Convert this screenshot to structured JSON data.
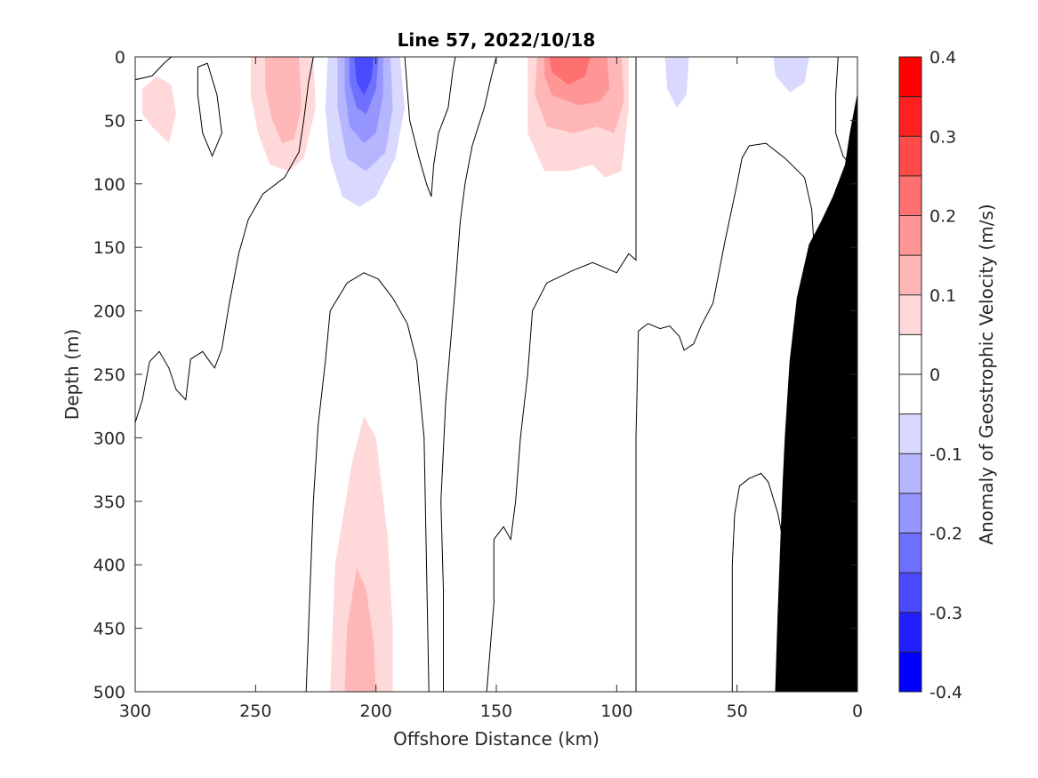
{
  "chart_data": {
    "type": "contour",
    "title": "Line 57, 2022/10/18",
    "xlabel": "Offshore Distance (km)",
    "ylabel": "Depth (m)",
    "xlim": [
      300,
      0
    ],
    "ylim": [
      0,
      500
    ],
    "x_reversed": true,
    "y_reversed": true,
    "xticks": [
      300,
      250,
      200,
      150,
      100,
      50,
      0
    ],
    "yticks": [
      0,
      50,
      100,
      150,
      200,
      250,
      300,
      350,
      400,
      450,
      500
    ],
    "colorbar": {
      "label": "Anomaly of Geostrophic Velocity (m/s)",
      "range": [
        -0.4,
        0.4
      ],
      "ticks": [
        0.4,
        0.3,
        0.2,
        0.1,
        0,
        -0.1,
        -0.2,
        -0.3,
        -0.4
      ],
      "tick_labels": [
        "0.4",
        "0.3",
        "0.2",
        "0.1",
        "0",
        "-0.1",
        "-0.2",
        "-0.3",
        "-0.4"
      ],
      "levels": 16,
      "colors_top_to_bottom": [
        "#ff0000",
        "#ff2020",
        "#ff4a4a",
        "#ff7070",
        "#ff9696",
        "#ffb6b6",
        "#ffd9d9",
        "#ffffff",
        "#ffffff",
        "#d9d9ff",
        "#b6b6ff",
        "#9696ff",
        "#7070ff",
        "#4a4aff",
        "#2020ff",
        "#0000ff"
      ]
    },
    "features": [
      {
        "kind": "positive",
        "level": 0.1,
        "points": [
          [
            297,
            25
          ],
          [
            291,
            15
          ],
          [
            285,
            22
          ],
          [
            283,
            45
          ],
          [
            286,
            68
          ],
          [
            293,
            55
          ],
          [
            297,
            45
          ]
        ]
      },
      {
        "kind": "positive",
        "level": 0.05,
        "points": [
          [
            265,
            2
          ],
          [
            258,
            2
          ],
          [
            257,
            12
          ],
          [
            262,
            18
          ],
          [
            267,
            10
          ]
        ]
      },
      {
        "kind": "positive",
        "level": 0.1,
        "points": [
          [
            252,
            0
          ],
          [
            226,
            0
          ],
          [
            225,
            40
          ],
          [
            230,
            80
          ],
          [
            236,
            90
          ],
          [
            244,
            85
          ],
          [
            249,
            60
          ],
          [
            252,
            30
          ]
        ]
      },
      {
        "kind": "positive",
        "level": 0.15,
        "points": [
          [
            246,
            0
          ],
          [
            232,
            0
          ],
          [
            231,
            40
          ],
          [
            234,
            65
          ],
          [
            239,
            68
          ],
          [
            243,
            50
          ],
          [
            246,
            25
          ]
        ]
      },
      {
        "kind": "negative",
        "level": -0.1,
        "points": [
          [
            220,
            0
          ],
          [
            190,
            0
          ],
          [
            188,
            40
          ],
          [
            192,
            80
          ],
          [
            200,
            110
          ],
          [
            207,
            118
          ],
          [
            214,
            110
          ],
          [
            219,
            80
          ],
          [
            221,
            40
          ]
        ]
      },
      {
        "kind": "negative",
        "level": -0.15,
        "points": [
          [
            216,
            0
          ],
          [
            194,
            0
          ],
          [
            193,
            40
          ],
          [
            196,
            75
          ],
          [
            204,
            90
          ],
          [
            212,
            80
          ],
          [
            216,
            40
          ]
        ]
      },
      {
        "kind": "negative",
        "level": -0.2,
        "points": [
          [
            213,
            0
          ],
          [
            197,
            0
          ],
          [
            197,
            30
          ],
          [
            200,
            60
          ],
          [
            205,
            68
          ],
          [
            211,
            55
          ],
          [
            213,
            25
          ]
        ]
      },
      {
        "kind": "negative",
        "level": -0.25,
        "points": [
          [
            211,
            0
          ],
          [
            199,
            0
          ],
          [
            200,
            25
          ],
          [
            204,
            45
          ],
          [
            208,
            40
          ],
          [
            211,
            20
          ]
        ]
      },
      {
        "kind": "negative",
        "level": -0.3,
        "points": [
          [
            209,
            0
          ],
          [
            201,
            0
          ],
          [
            202,
            18
          ],
          [
            205,
            30
          ],
          [
            208,
            20
          ]
        ]
      },
      {
        "kind": "positive",
        "level": 0.05,
        "points": [
          [
            182,
            0
          ],
          [
            174,
            0
          ],
          [
            175,
            15
          ],
          [
            177,
            25
          ],
          [
            181,
            18
          ]
        ]
      },
      {
        "kind": "negative",
        "level": -0.05,
        "points": [
          [
            162,
            0
          ],
          [
            148,
            0
          ],
          [
            150,
            25
          ],
          [
            156,
            35
          ],
          [
            161,
            20
          ]
        ]
      },
      {
        "kind": "positive",
        "level": 0.1,
        "points": [
          [
            137,
            0
          ],
          [
            95,
            0
          ],
          [
            95,
            40
          ],
          [
            98,
            90
          ],
          [
            105,
            95
          ],
          [
            110,
            85
          ],
          [
            120,
            90
          ],
          [
            130,
            90
          ],
          [
            137,
            60
          ]
        ]
      },
      {
        "kind": "positive",
        "level": 0.15,
        "points": [
          [
            133,
            0
          ],
          [
            98,
            0
          ],
          [
            97,
            35
          ],
          [
            101,
            60
          ],
          [
            108,
            55
          ],
          [
            118,
            60
          ],
          [
            129,
            55
          ],
          [
            134,
            30
          ]
        ]
      },
      {
        "kind": "positive",
        "level": 0.2,
        "points": [
          [
            130,
            0
          ],
          [
            104,
            0
          ],
          [
            103,
            25
          ],
          [
            107,
            35
          ],
          [
            116,
            38
          ],
          [
            127,
            30
          ],
          [
            130,
            15
          ]
        ]
      },
      {
        "kind": "positive",
        "level": 0.25,
        "points": [
          [
            128,
            0
          ],
          [
            111,
            0
          ],
          [
            113,
            15
          ],
          [
            120,
            22
          ],
          [
            127,
            12
          ]
        ]
      },
      {
        "kind": "negative",
        "level": -0.05,
        "points": [
          [
            88,
            0
          ],
          [
            62,
            0
          ],
          [
            58,
            50
          ],
          [
            63,
            100
          ],
          [
            70,
            100
          ],
          [
            80,
            75
          ],
          [
            88,
            40
          ]
        ]
      },
      {
        "kind": "negative",
        "level": -0.1,
        "points": [
          [
            80,
            0
          ],
          [
            70,
            0
          ],
          [
            71,
            30
          ],
          [
            75,
            40
          ],
          [
            79,
            25
          ]
        ]
      },
      {
        "kind": "negative",
        "level": -0.05,
        "points": [
          [
            42,
            0
          ],
          [
            12,
            0
          ],
          [
            12,
            30
          ],
          [
            18,
            45
          ],
          [
            28,
            50
          ],
          [
            38,
            40
          ],
          [
            42,
            20
          ]
        ]
      },
      {
        "kind": "negative",
        "level": -0.1,
        "points": [
          [
            35,
            0
          ],
          [
            20,
            0
          ],
          [
            22,
            20
          ],
          [
            28,
            28
          ],
          [
            34,
            15
          ]
        ]
      },
      {
        "kind": "positive",
        "level": 0.1,
        "points": [
          [
            193,
            500
          ],
          [
            219,
            500
          ],
          [
            217,
            400
          ],
          [
            210,
            320
          ],
          [
            205,
            283
          ],
          [
            200,
            300
          ],
          [
            195,
            380
          ],
          [
            193,
            450
          ]
        ]
      },
      {
        "kind": "positive",
        "level": 0.15,
        "points": [
          [
            200,
            500
          ],
          [
            213,
            500
          ],
          [
            212,
            450
          ],
          [
            208,
            402
          ],
          [
            204,
            420
          ],
          [
            201,
            460
          ]
        ]
      },
      {
        "kind": "negative",
        "level": -0.05,
        "points": [
          [
            115,
            500
          ],
          [
            137,
            500
          ],
          [
            135,
            400
          ],
          [
            128,
            330
          ],
          [
            122,
            308
          ],
          [
            117,
            360
          ],
          [
            115,
            440
          ]
        ]
      },
      {
        "kind": "negative",
        "level": -0.05,
        "points": [
          [
            101,
            500
          ],
          [
            109,
            500
          ],
          [
            108,
            420
          ],
          [
            106,
            367
          ],
          [
            103,
            380
          ],
          [
            101,
            440
          ]
        ]
      },
      {
        "kind": "positive",
        "level": 0.05,
        "points": [
          [
            66,
            500
          ],
          [
            82,
            500
          ],
          [
            80,
            440
          ],
          [
            75,
            378
          ],
          [
            70,
            400
          ],
          [
            67,
            450
          ]
        ]
      },
      {
        "kind": "positive",
        "level": 0.05,
        "points": [
          [
            1,
            30
          ],
          [
            0,
            28
          ],
          [
            0,
            50
          ],
          [
            1,
            45
          ]
        ]
      }
    ],
    "zero_contours": [
      [
        [
          300,
          18
        ],
        [
          293,
          15
        ],
        [
          288,
          5
        ],
        [
          285,
          0
        ]
      ],
      [
        [
          300,
          288
        ],
        [
          297,
          270
        ],
        [
          294,
          240
        ],
        [
          290,
          232
        ],
        [
          286,
          245
        ],
        [
          283,
          262
        ],
        [
          279,
          270
        ],
        [
          277,
          238
        ],
        [
          272,
          232
        ],
        [
          269,
          240
        ],
        [
          267,
          245
        ],
        [
          264,
          230
        ],
        [
          261,
          195
        ],
        [
          257,
          155
        ],
        [
          253,
          128
        ],
        [
          247,
          108
        ],
        [
          238,
          95
        ],
        [
          232,
          75
        ],
        [
          230,
          50
        ],
        [
          228,
          20
        ],
        [
          226,
          0
        ]
      ],
      [
        [
          270,
          5
        ],
        [
          266,
          30
        ],
        [
          264,
          60
        ],
        [
          268,
          78
        ],
        [
          272,
          60
        ],
        [
          274,
          30
        ],
        [
          274,
          8
        ],
        [
          270,
          5
        ]
      ],
      [
        [
          229,
          500
        ],
        [
          227,
          400
        ],
        [
          226,
          350
        ],
        [
          224,
          290
        ],
        [
          221,
          240
        ],
        [
          219,
          200
        ],
        [
          212,
          178
        ],
        [
          205,
          170
        ],
        [
          199,
          175
        ],
        [
          193,
          190
        ],
        [
          187,
          210
        ],
        [
          183,
          240
        ],
        [
          180,
          300
        ],
        [
          179,
          400
        ],
        [
          178,
          500
        ]
      ],
      [
        [
          188,
          0
        ],
        [
          186,
          50
        ],
        [
          182,
          80
        ],
        [
          179,
          100
        ],
        [
          177,
          110
        ],
        [
          176,
          85
        ],
        [
          174,
          60
        ],
        [
          170,
          40
        ],
        [
          168,
          10
        ],
        [
          167,
          0
        ]
      ],
      [
        [
          172,
          500
        ],
        [
          172,
          420
        ],
        [
          173,
          350
        ],
        [
          171,
          270
        ],
        [
          167,
          180
        ],
        [
          165,
          130
        ],
        [
          163,
          100
        ],
        [
          160,
          70
        ],
        [
          155,
          40
        ],
        [
          152,
          15
        ],
        [
          150,
          0
        ]
      ],
      [
        [
          154,
          500
        ],
        [
          151,
          430
        ],
        [
          151,
          380
        ],
        [
          147,
          370
        ],
        [
          144,
          380
        ],
        [
          142,
          350
        ],
        [
          140,
          300
        ],
        [
          137,
          250
        ],
        [
          135,
          200
        ],
        [
          129,
          178
        ],
        [
          118,
          168
        ],
        [
          110,
          162
        ],
        [
          100,
          170
        ],
        [
          95,
          155
        ],
        [
          92,
          160
        ],
        [
          92,
          0
        ]
      ],
      [
        [
          92,
          500
        ],
        [
          92,
          400
        ],
        [
          92,
          300
        ],
        [
          91,
          216
        ],
        [
          87,
          210
        ],
        [
          82,
          214
        ],
        [
          78,
          212
        ],
        [
          74,
          220
        ],
        [
          72,
          231
        ],
        [
          68,
          226
        ],
        [
          65,
          212
        ],
        [
          60,
          194
        ],
        [
          55,
          145
        ],
        [
          50,
          100
        ],
        [
          48,
          80
        ],
        [
          45,
          70
        ],
        [
          38,
          68
        ],
        [
          30,
          80
        ],
        [
          22,
          95
        ],
        [
          19,
          120
        ],
        [
          18,
          150
        ],
        [
          18,
          160
        ]
      ],
      [
        [
          52,
          500
        ],
        [
          52,
          450
        ],
        [
          52,
          400
        ],
        [
          51,
          360
        ],
        [
          49,
          338
        ],
        [
          45,
          332
        ],
        [
          40,
          328
        ],
        [
          37,
          335
        ],
        [
          33,
          360
        ],
        [
          31,
          380
        ],
        [
          31,
          393
        ],
        [
          30,
          400
        ]
      ],
      [
        [
          8,
          0
        ],
        [
          9,
          30
        ],
        [
          9,
          60
        ],
        [
          6,
          78
        ],
        [
          3,
          85
        ],
        [
          0,
          88
        ]
      ]
    ],
    "seafloor": [
      [
        0,
        30
      ],
      [
        3,
        60
      ],
      [
        5,
        85
      ],
      [
        10,
        110
      ],
      [
        15,
        130
      ],
      [
        20,
        148
      ],
      [
        25,
        190
      ],
      [
        28,
        240
      ],
      [
        30,
        300
      ],
      [
        31,
        340
      ],
      [
        32,
        390
      ],
      [
        33,
        440
      ],
      [
        34,
        500
      ],
      [
        0,
        500
      ]
    ]
  }
}
